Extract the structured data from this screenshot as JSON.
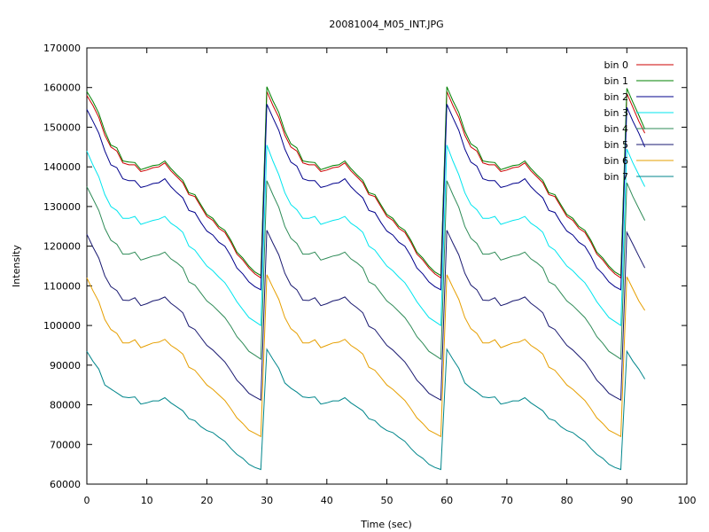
{
  "chart_data": {
    "type": "line",
    "title": "20081004_M05_INT.JPG",
    "xlabel": "Time (sec)",
    "ylabel": "Intensity",
    "xlim": [
      0,
      100
    ],
    "ylim": [
      60000,
      170000
    ],
    "xticks": [
      0,
      10,
      20,
      30,
      40,
      50,
      60,
      70,
      80,
      90,
      100
    ],
    "yticks": [
      60000,
      70000,
      80000,
      90000,
      100000,
      110000,
      120000,
      130000,
      140000,
      150000,
      160000,
      170000
    ],
    "grid": false,
    "legend_position": "top-right",
    "x": [
      0,
      1,
      2,
      3,
      4,
      5,
      6,
      7,
      8,
      9,
      10,
      11,
      12,
      13,
      14,
      15,
      16,
      17,
      18,
      19,
      20,
      21,
      22,
      23,
      24,
      25,
      26,
      27,
      28,
      29,
      30,
      31,
      32,
      33,
      34,
      35,
      36,
      37,
      38,
      39,
      40,
      41,
      42,
      43,
      44,
      45,
      46,
      47,
      48,
      49,
      50,
      51,
      52,
      53,
      54,
      55,
      56,
      57,
      58,
      59,
      60,
      61,
      62,
      63,
      64,
      65,
      66,
      67,
      68,
      69,
      70,
      71,
      72,
      73,
      74,
      75,
      76,
      77,
      78,
      79,
      80,
      81,
      82,
      83,
      84,
      85,
      86,
      87,
      88,
      89,
      90,
      91,
      92,
      93
    ],
    "series": [
      {
        "name": "bin 0",
        "color": "#cc0000",
        "values": [
          158000,
          155500,
          152500,
          148000,
          145000,
          144000,
          141000,
          140500,
          140500,
          138800,
          139200,
          139800,
          140000,
          141000,
          139000,
          137500,
          136000,
          133000,
          132500,
          130000,
          127500,
          126500,
          124500,
          123500,
          121000,
          118000,
          116500,
          114500,
          113000,
          112000,
          159000,
          155500,
          152500,
          148000,
          145000,
          144000,
          141000,
          140500,
          140500,
          138800,
          139200,
          139800,
          140000,
          141000,
          139000,
          137500,
          136000,
          133000,
          132500,
          130000,
          127500,
          126500,
          124500,
          123500,
          121000,
          118000,
          116500,
          114500,
          113000,
          112000,
          159000,
          155500,
          152500,
          148000,
          145000,
          144000,
          141000,
          140500,
          140500,
          138800,
          139200,
          139800,
          140000,
          141000,
          139000,
          137500,
          136000,
          133000,
          132500,
          130000,
          127500,
          126500,
          124500,
          123500,
          121000,
          118000,
          116500,
          114500,
          113000,
          112000,
          158500,
          155000,
          151500,
          148500
        ]
      },
      {
        "name": "bin 1",
        "color": "#008000",
        "values": [
          159000,
          156500,
          153500,
          149000,
          145500,
          144800,
          141500,
          141200,
          141100,
          139300,
          139800,
          140300,
          140500,
          141500,
          139600,
          138000,
          136600,
          133500,
          133000,
          130500,
          128000,
          127000,
          125000,
          124000,
          121500,
          118500,
          117000,
          115000,
          113500,
          112600,
          160200,
          156700,
          153700,
          149000,
          145800,
          144800,
          141500,
          141200,
          141100,
          139300,
          139800,
          140300,
          140500,
          141500,
          139600,
          138000,
          136600,
          133500,
          133000,
          130500,
          128000,
          127000,
          125000,
          124000,
          121500,
          118500,
          117000,
          115000,
          113500,
          112600,
          160200,
          156700,
          153700,
          149000,
          145800,
          144800,
          141500,
          141200,
          141100,
          139300,
          139800,
          140300,
          140500,
          141500,
          139600,
          138000,
          136600,
          133500,
          133000,
          130500,
          128000,
          127000,
          125000,
          124000,
          121500,
          118500,
          117000,
          115000,
          113500,
          112600,
          159800,
          156300,
          153000,
          149500
        ]
      },
      {
        "name": "bin 2",
        "color": "#00008b",
        "values": [
          154500,
          151500,
          148500,
          144000,
          140500,
          139800,
          137000,
          136500,
          136500,
          134800,
          135200,
          135800,
          136000,
          137000,
          135000,
          133500,
          132200,
          129000,
          128500,
          126000,
          123800,
          122800,
          121000,
          120000,
          117500,
          114500,
          113000,
          111000,
          109800,
          109000,
          155800,
          152400,
          149200,
          144500,
          141200,
          140200,
          137000,
          136500,
          136500,
          134800,
          135200,
          135800,
          136000,
          137000,
          135000,
          133500,
          132200,
          129000,
          128500,
          126000,
          123800,
          122800,
          121000,
          120000,
          117500,
          114500,
          113000,
          111000,
          109800,
          109000,
          155800,
          152400,
          149200,
          144500,
          141200,
          140200,
          137000,
          136500,
          136500,
          134800,
          135200,
          135800,
          136000,
          137000,
          135000,
          133500,
          132200,
          129000,
          128500,
          126000,
          123800,
          122800,
          121000,
          120000,
          117500,
          114500,
          113000,
          111000,
          109800,
          109000,
          155000,
          151500,
          148500,
          145000
        ]
      },
      {
        "name": "bin 3",
        "color": "#00e5ee",
        "values": [
          144000,
          140500,
          137500,
          133000,
          130000,
          129000,
          127000,
          127000,
          127500,
          125500,
          126000,
          126500,
          126800,
          127500,
          125800,
          124800,
          123500,
          120000,
          119000,
          117000,
          115000,
          113800,
          112200,
          110800,
          108500,
          106000,
          104000,
          102000,
          101000,
          100000,
          145500,
          141500,
          138000,
          133500,
          130500,
          129200,
          127000,
          127000,
          127500,
          125500,
          126000,
          126500,
          126800,
          127500,
          125800,
          124800,
          123500,
          120000,
          119000,
          117000,
          115000,
          113800,
          112200,
          110800,
          108500,
          106000,
          104000,
          102000,
          101000,
          100000,
          145500,
          141500,
          138000,
          133500,
          130500,
          129200,
          127000,
          127000,
          127500,
          125500,
          126000,
          126500,
          126800,
          127500,
          125800,
          124800,
          123500,
          120000,
          119000,
          117000,
          115000,
          113800,
          112200,
          110800,
          108500,
          106000,
          104000,
          102000,
          101000,
          100000,
          144500,
          141000,
          138000,
          135000
        ]
      },
      {
        "name": "bin 4",
        "color": "#2e8b57",
        "values": [
          135000,
          132000,
          129000,
          124500,
          121500,
          120500,
          118000,
          118000,
          118500,
          116500,
          117000,
          117500,
          117800,
          118500,
          116800,
          115800,
          114500,
          111000,
          110200,
          108200,
          106200,
          105000,
          103500,
          102000,
          99800,
          97200,
          95500,
          93500,
          92500,
          91500,
          136500,
          133000,
          129800,
          125000,
          122000,
          120700,
          118000,
          118000,
          118500,
          116500,
          117000,
          117500,
          117800,
          118500,
          116800,
          115800,
          114500,
          111000,
          110200,
          108200,
          106200,
          105000,
          103500,
          102000,
          99800,
          97200,
          95500,
          93500,
          92500,
          91500,
          136500,
          133000,
          129800,
          125000,
          122000,
          120700,
          118000,
          118000,
          118500,
          116500,
          117000,
          117500,
          117800,
          118500,
          116800,
          115800,
          114500,
          111000,
          110200,
          108200,
          106200,
          105000,
          103500,
          102000,
          99800,
          97200,
          95500,
          93500,
          92500,
          91500,
          136000,
          132500,
          129500,
          126500
        ]
      },
      {
        "name": "bin 5",
        "color": "#191970",
        "values": [
          123000,
          119800,
          117000,
          112500,
          109800,
          108800,
          106400,
          106300,
          107000,
          105000,
          105500,
          106200,
          106500,
          107200,
          105600,
          104500,
          103200,
          99800,
          99000,
          97000,
          95000,
          93800,
          92300,
          90800,
          88600,
          86200,
          84700,
          82900,
          82000,
          81200,
          124000,
          120800,
          117800,
          113200,
          110200,
          109000,
          106400,
          106300,
          107000,
          105000,
          105500,
          106200,
          106500,
          107200,
          105600,
          104500,
          103200,
          99800,
          99000,
          97000,
          95000,
          93800,
          92300,
          90800,
          88600,
          86200,
          84700,
          82900,
          82000,
          81200,
          124000,
          120800,
          117800,
          113200,
          110200,
          109000,
          106400,
          106300,
          107000,
          105000,
          105500,
          106200,
          106500,
          107200,
          105600,
          104500,
          103200,
          99800,
          99000,
          97000,
          95000,
          93800,
          92300,
          90800,
          88600,
          86200,
          84700,
          82900,
          82000,
          81200,
          123500,
          120500,
          117500,
          114500
        ]
      },
      {
        "name": "bin 6",
        "color": "#e69f00",
        "values": [
          112000,
          108800,
          106000,
          101500,
          99000,
          98000,
          95600,
          95600,
          96400,
          94400,
          95000,
          95600,
          95800,
          96500,
          95000,
          94000,
          92800,
          89500,
          88700,
          86900,
          85000,
          83900,
          82500,
          81100,
          79000,
          76700,
          75300,
          73600,
          72800,
          72000,
          112800,
          109600,
          106600,
          102000,
          99200,
          98000,
          95600,
          95600,
          96400,
          94400,
          95000,
          95600,
          95800,
          96500,
          95000,
          94000,
          92800,
          89500,
          88700,
          86900,
          85000,
          83900,
          82500,
          81100,
          79000,
          76700,
          75300,
          73600,
          72800,
          72000,
          112800,
          109600,
          106600,
          102000,
          99200,
          98000,
          95600,
          95600,
          96400,
          94400,
          95000,
          95600,
          95800,
          96500,
          95000,
          94000,
          92800,
          89500,
          88700,
          86900,
          85000,
          83900,
          82500,
          81100,
          79000,
          76700,
          75300,
          73600,
          72800,
          72000,
          112300,
          109200,
          106200,
          103800
        ]
      },
      {
        "name": "bin 7",
        "color": "#00868b",
        "values": [
          93500,
          91000,
          89000,
          85000,
          84000,
          83000,
          82000,
          81800,
          82000,
          80200,
          80500,
          81000,
          81000,
          81800,
          80500,
          79500,
          78500,
          76500,
          76000,
          74500,
          73500,
          73000,
          71800,
          70800,
          69000,
          67500,
          66500,
          65000,
          64200,
          63700,
          94000,
          91500,
          89200,
          85500,
          84200,
          83200,
          82000,
          81800,
          82000,
          80200,
          80500,
          81000,
          81000,
          81800,
          80500,
          79500,
          78500,
          76500,
          76000,
          74500,
          73500,
          73000,
          71800,
          70800,
          69000,
          67500,
          66500,
          65000,
          64200,
          63700,
          94000,
          91500,
          89200,
          85500,
          84200,
          83200,
          82000,
          81800,
          82000,
          80200,
          80500,
          81000,
          81000,
          81800,
          80500,
          79500,
          78500,
          76500,
          76000,
          74500,
          73500,
          73000,
          71800,
          70800,
          69000,
          67500,
          66500,
          65000,
          64200,
          63700,
          93500,
          91000,
          89000,
          86500
        ]
      }
    ]
  }
}
